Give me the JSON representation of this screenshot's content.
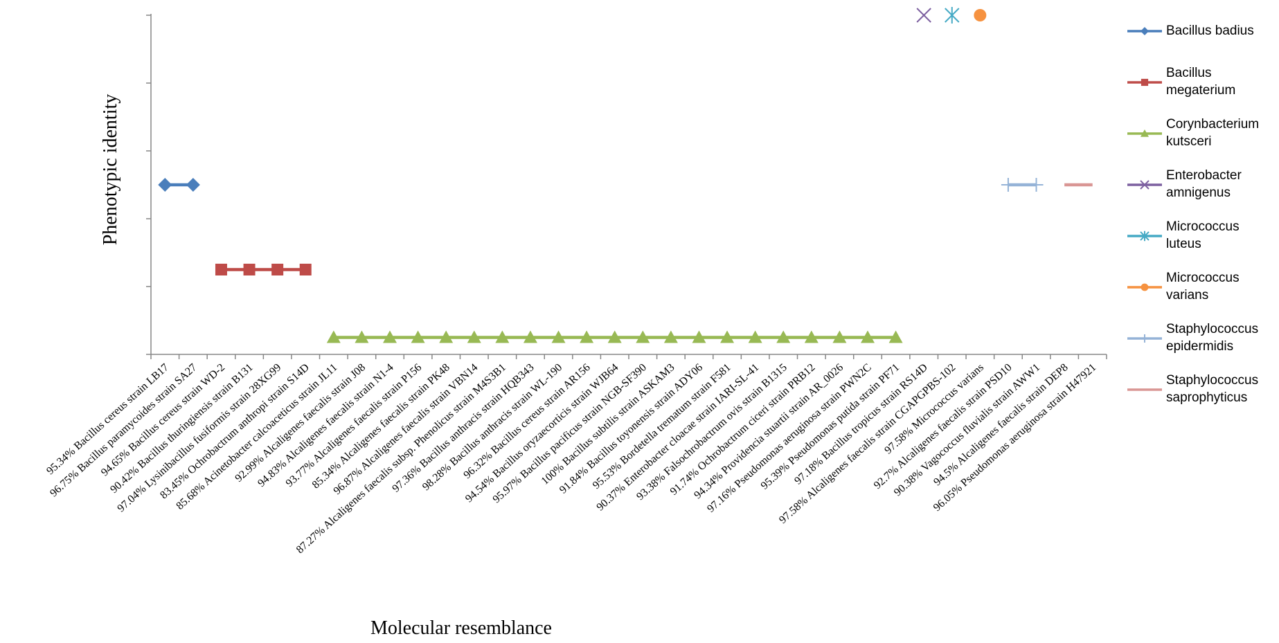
{
  "chart_data": {
    "type": "line",
    "y_label": "Phenotypic identity",
    "x_label": "Molecular resemblance",
    "ylim": [
      0,
      5
    ],
    "yticks": [
      0,
      1,
      2,
      3,
      4,
      5
    ],
    "categories": [
      "95.34% Bacillus cereus strain  LB17",
      "96.75% Bacillus paramycoides strain SA27",
      "94.65% Bacillus cereus strain WD-2",
      "90.42% Bacillus thuringiensis strain B131",
      "97.04% Lysinibacillus fusiformis strain 28XG99",
      "83.45% Ochrobactrum anthropi strain S14D",
      "85.68% Acinetobacter calcoaceticus strain JL11",
      "92.99% Alcaligenes faecalis strain J08",
      "94.83% Alcaligenes faecalis strain N1-4",
      "93.77% Alcaligenes faecalis strain P156",
      "85.34% Alcaligenes faecalis strain PK48",
      "96.87% Alcaligenes faecalis strain VBN14",
      "87.27% Alcaligenes faecalis subsp. Phenolicus strain M4S3B1",
      "97.36% Bacillus anthracis strain HQB343",
      "98.28% Bacillus anthracis strain WL-190",
      "96.32% Bacillus cereus strain AR156",
      "94.54% Bacillus oryzaecorticis strain WJB64",
      "95.97% Bacillus pacificus strain NGB-SF390",
      "100% Bacillus subtilis strain ASKAM3",
      "91.84% Bacillus toyonensis strain ADY06",
      "95.53% Bordetella  trematum strain F581",
      "90.37% Enterobacter cloacae strain IARI-SL-41",
      "93.38% Falsochrobactrum ovis strain B1315",
      "91.74% Ochrobactrum ciceri strain PRB12",
      "94.34% Providencia stuartii strain AR_0026",
      "97.16% Pseudomonas aeruginosa strain PWN2C",
      "95.39% Pseudomonas putida strain PF71",
      "97.18% Bacillus tropicus strain RS14D",
      "97.58% Alcaligenes faecalis strain CGAPGPBS-102",
      "97.58% Micrococcus varians",
      "92.7% Alcaligenes faecalis strain PSD10",
      "90.38% Vagococcus fluvialis strain AWW1",
      "94.5% Alcaligenes faecalis strain DEP8",
      "96.05% Pseudomonas aeruginosa strain H47921"
    ],
    "series": [
      {
        "name": "Bacillus badius",
        "color": "#4a7ebb",
        "marker": "diamond",
        "values": [
          2.5,
          2.5,
          null,
          null,
          null,
          null,
          null,
          null,
          null,
          null,
          null,
          null,
          null,
          null,
          null,
          null,
          null,
          null,
          null,
          null,
          null,
          null,
          null,
          null,
          null,
          null,
          null,
          null,
          null,
          null,
          null,
          null,
          null,
          null
        ]
      },
      {
        "name": "Bacillus megaterium",
        "color": "#be4b48",
        "marker": "square",
        "values": [
          null,
          null,
          1.25,
          1.25,
          1.25,
          1.25,
          null,
          null,
          null,
          null,
          null,
          null,
          null,
          null,
          null,
          null,
          null,
          null,
          null,
          null,
          null,
          null,
          null,
          null,
          null,
          null,
          null,
          null,
          null,
          null,
          null,
          null,
          null,
          null
        ]
      },
      {
        "name": "Corynbacterium kutsceri",
        "color": "#98b954",
        "marker": "triangle",
        "values": [
          null,
          null,
          null,
          null,
          null,
          null,
          0.25,
          0.25,
          0.25,
          0.25,
          0.25,
          0.25,
          0.25,
          0.25,
          0.25,
          0.25,
          0.25,
          0.25,
          0.25,
          0.25,
          0.25,
          0.25,
          0.25,
          0.25,
          0.25,
          0.25,
          0.25,
          null,
          null,
          null,
          null,
          null,
          null,
          null
        ]
      },
      {
        "name": "Enterobacter amnigenus",
        "color": "#7d60a0",
        "marker": "x",
        "values": [
          null,
          null,
          null,
          null,
          null,
          null,
          null,
          null,
          null,
          null,
          null,
          null,
          null,
          null,
          null,
          null,
          null,
          null,
          null,
          null,
          null,
          null,
          null,
          null,
          null,
          null,
          null,
          5,
          null,
          null,
          null,
          null,
          null,
          null
        ]
      },
      {
        "name": "Micrococcus luteus",
        "color": "#46aac5",
        "marker": "star",
        "values": [
          null,
          null,
          null,
          null,
          null,
          null,
          null,
          null,
          null,
          null,
          null,
          null,
          null,
          null,
          null,
          null,
          null,
          null,
          null,
          null,
          null,
          null,
          null,
          null,
          null,
          null,
          null,
          null,
          5,
          null,
          null,
          null,
          null,
          null
        ]
      },
      {
        "name": "Micrococcus varians",
        "color": "#f69240",
        "marker": "circle",
        "values": [
          null,
          null,
          null,
          null,
          null,
          null,
          null,
          null,
          null,
          null,
          null,
          null,
          null,
          null,
          null,
          null,
          null,
          null,
          null,
          null,
          null,
          null,
          null,
          null,
          null,
          null,
          null,
          null,
          null,
          5,
          null,
          null,
          null,
          null
        ]
      },
      {
        "name": "Staphylococcus epidermidis",
        "color": "#95b3d7",
        "marker": "plus",
        "values": [
          null,
          null,
          null,
          null,
          null,
          null,
          null,
          null,
          null,
          null,
          null,
          null,
          null,
          null,
          null,
          null,
          null,
          null,
          null,
          null,
          null,
          null,
          null,
          null,
          null,
          null,
          null,
          null,
          null,
          null,
          2.5,
          2.5,
          null,
          null
        ]
      },
      {
        "name": "Staphylococcus saprophyticus",
        "color": "#d99694",
        "marker": "none",
        "values": [
          null,
          null,
          null,
          null,
          null,
          null,
          null,
          null,
          null,
          null,
          null,
          null,
          null,
          null,
          null,
          null,
          null,
          null,
          null,
          null,
          null,
          null,
          null,
          null,
          null,
          null,
          null,
          null,
          null,
          null,
          null,
          null,
          2.5,
          2.5
        ]
      }
    ]
  }
}
